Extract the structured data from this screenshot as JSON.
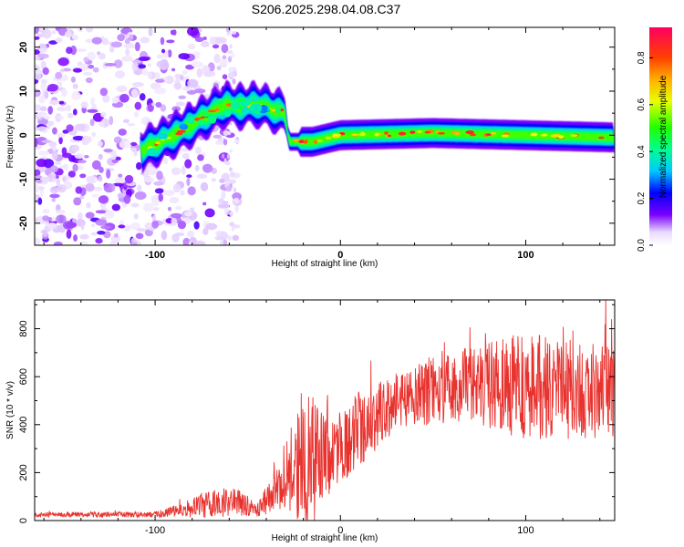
{
  "title": "S206.2025.298.04.08.C37",
  "chart_data": [
    {
      "type": "heatmap",
      "name": "spectrogram",
      "xlabel": "Height of straight line (km)",
      "ylabel": "Frequency (Hz)",
      "xlim": [
        -165,
        148
      ],
      "ylim": [
        -25,
        24.5
      ],
      "xticks": [
        -100,
        0,
        100
      ],
      "yticks": [
        -20,
        -10,
        0,
        10,
        20
      ],
      "colorbar": {
        "label": "Normalized spectral amplitude",
        "range": [
          0,
          0.93
        ],
        "ticks": [
          0.0,
          0.2,
          0.4,
          0.6,
          0.8
        ]
      },
      "ridge": [
        {
          "x": -105,
          "y": -3
        },
        {
          "x": -90,
          "y": 0
        },
        {
          "x": -80,
          "y": 2.5
        },
        {
          "x": -72,
          "y": 4.5
        },
        {
          "x": -62,
          "y": 7
        },
        {
          "x": -55,
          "y": 6.5
        },
        {
          "x": -45,
          "y": 7
        },
        {
          "x": -30,
          "y": 5
        },
        {
          "x": -28,
          "y": -1.5
        },
        {
          "x": -15,
          "y": -1.5
        },
        {
          "x": 0,
          "y": 0
        },
        {
          "x": 50,
          "y": 0.5
        },
        {
          "x": 100,
          "y": 0
        },
        {
          "x": 148,
          "y": -0.5
        }
      ]
    },
    {
      "type": "line",
      "name": "snr",
      "xlabel": "Height of straight line (km)",
      "ylabel": "SNR (10 * v/v)",
      "xlim": [
        -165,
        148
      ],
      "ylim": [
        0,
        920
      ],
      "xticks": [
        -100,
        0,
        100
      ],
      "yticks": [
        0,
        200,
        400,
        600,
        800
      ],
      "color": "#e8322e",
      "envelope": [
        {
          "x": -165,
          "mean": 25,
          "spread": 10
        },
        {
          "x": -100,
          "mean": 25,
          "spread": 12
        },
        {
          "x": -85,
          "mean": 45,
          "spread": 30
        },
        {
          "x": -70,
          "mean": 70,
          "spread": 60
        },
        {
          "x": -55,
          "mean": 80,
          "spread": 60
        },
        {
          "x": -45,
          "mean": 40,
          "spread": 25
        },
        {
          "x": -35,
          "mean": 130,
          "spread": 100
        },
        {
          "x": -25,
          "mean": 220,
          "spread": 200
        },
        {
          "x": -17,
          "mean": 250,
          "spread": 300
        },
        {
          "x": -5,
          "mean": 270,
          "spread": 150
        },
        {
          "x": 10,
          "mean": 380,
          "spread": 160
        },
        {
          "x": 30,
          "mean": 500,
          "spread": 120
        },
        {
          "x": 60,
          "mean": 560,
          "spread": 150
        },
        {
          "x": 100,
          "mean": 560,
          "spread": 220
        },
        {
          "x": 148,
          "mean": 540,
          "spread": 200
        }
      ]
    }
  ]
}
